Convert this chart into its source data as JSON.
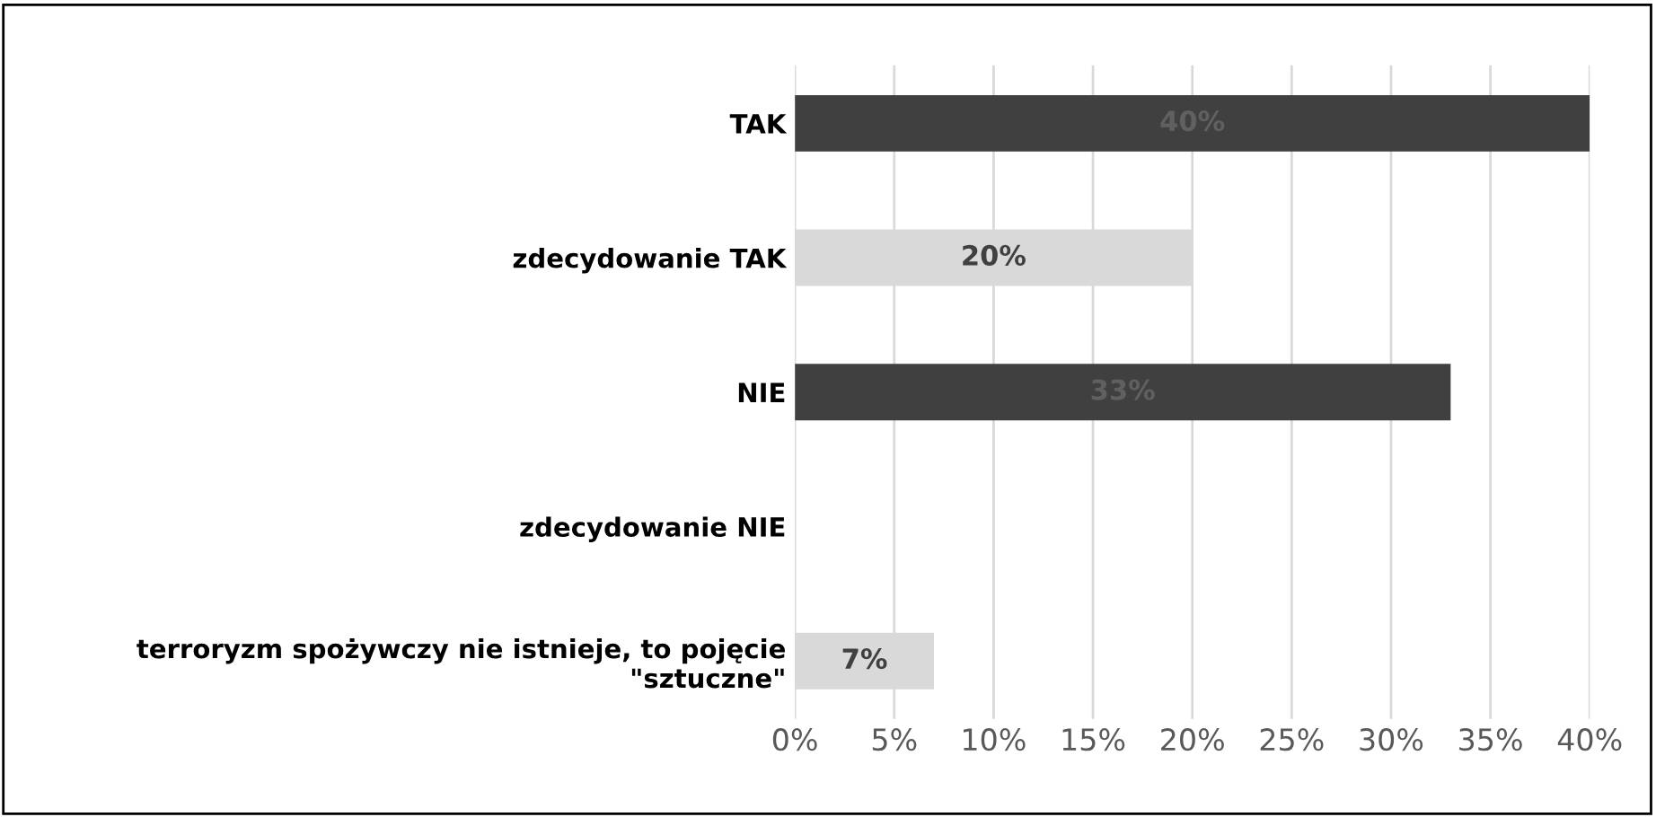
{
  "chart_data": {
    "type": "bar",
    "orientation": "horizontal",
    "categories": [
      "TAK",
      "zdecydowanie TAK",
      "NIE",
      "zdecydowanie NIE",
      "terroryzm spożywczy nie istnieje, to pojęcie\n\"sztuczne\""
    ],
    "values": [
      40,
      20,
      33,
      0,
      7
    ],
    "colors": [
      "#404040",
      "#d9d9d9",
      "#404040",
      "#404040",
      "#d9d9d9"
    ],
    "value_labels": [
      "40%",
      "20%",
      "33%",
      null,
      "7%"
    ],
    "xlim": [
      0,
      40
    ],
    "xticks": [
      {
        "value": 0,
        "label": "0%"
      },
      {
        "value": 5,
        "label": "5%"
      },
      {
        "value": 10,
        "label": "10%"
      },
      {
        "value": 15,
        "label": "15%"
      },
      {
        "value": 20,
        "label": "20%"
      },
      {
        "value": 25,
        "label": "25%"
      },
      {
        "value": 30,
        "label": "30%"
      },
      {
        "value": 35,
        "label": "35%"
      },
      {
        "value": 40,
        "label": "40%"
      }
    ],
    "grid": "x",
    "legend": false
  }
}
